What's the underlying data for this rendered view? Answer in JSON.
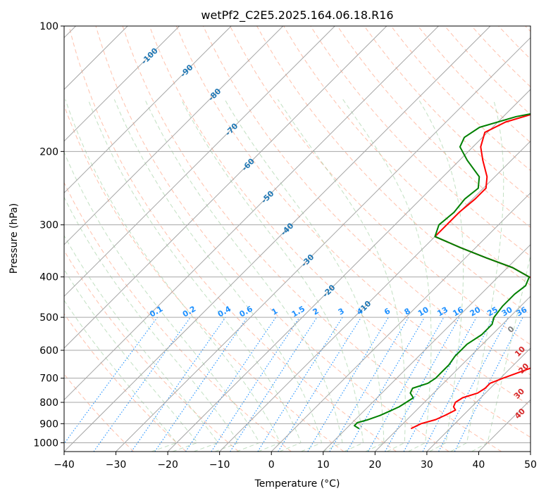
{
  "chart_data": {
    "type": "line",
    "subtype": "skew-t log-p diagram",
    "title": "wetPf2_C2E5.2025.164.06.18.R16",
    "xlabel": "Temperature (°C)",
    "ylabel": "Pressure (hPa)",
    "xlim": [
      -40,
      50
    ],
    "ylim": [
      1050,
      100
    ],
    "y_scale": "log",
    "x_ticks": [
      -40,
      -30,
      -20,
      -10,
      0,
      10,
      20,
      30,
      40,
      50
    ],
    "x_tick_labels": [
      "−40",
      "−30",
      "−20",
      "−10",
      "0",
      "10",
      "20",
      "30",
      "40",
      "50"
    ],
    "y_ticks": [
      100,
      200,
      300,
      400,
      500,
      600,
      700,
      800,
      900,
      1000
    ],
    "y_tick_labels": [
      "100",
      "200",
      "300",
      "400",
      "500",
      "600",
      "700",
      "800",
      "900",
      "1000"
    ],
    "grid": true,
    "legend": "none",
    "colors": {
      "temperature": "#ff0000",
      "dewpoint": "#008000",
      "isotherm": "#a6a6a6",
      "isobar": "#a6a6a6",
      "dry_adiabat": "#ff9f80",
      "moist_adiabat": "#99cc99",
      "mixing_ratio": "#1e90ff",
      "temperature_label": "#1f77b4",
      "potential_temperature_label": "#d62728",
      "zero_label": "#7f7f7f"
    },
    "series": [
      {
        "key": "temperature",
        "color": "#ff0000",
        "points": [
          {
            "p": 925,
            "t": 22.5
          },
          {
            "p": 900,
            "t": 23.5
          },
          {
            "p": 880,
            "t": 25.5
          },
          {
            "p": 860,
            "t": 26.5
          },
          {
            "p": 835,
            "t": 27.5
          },
          {
            "p": 820,
            "t": 26.5
          },
          {
            "p": 800,
            "t": 26.0
          },
          {
            "p": 780,
            "t": 26.5
          },
          {
            "p": 760,
            "t": 28.5
          },
          {
            "p": 740,
            "t": 29.0
          },
          {
            "p": 720,
            "t": 29.0
          },
          {
            "p": 700,
            "t": 30.5
          },
          {
            "p": 650,
            "t": 35.0
          },
          {
            "p": 600,
            "t": 37.5
          },
          {
            "p": 550,
            "t": 38.5
          },
          {
            "p": 520,
            "t": 37.5
          },
          {
            "p": 500,
            "t": 36.5
          },
          {
            "p": 470,
            "t": 33.5
          },
          {
            "p": 440,
            "t": 28.0
          },
          {
            "p": 420,
            "t": 22.5
          },
          {
            "p": 410,
            "t": 19.0
          },
          {
            "p": 400,
            "t": 16.0
          },
          {
            "p": 380,
            "t": 11.0
          },
          {
            "p": 360,
            "t": 4.0
          },
          {
            "p": 340,
            "t": -3.0
          },
          {
            "p": 320,
            "t": -10.0
          },
          {
            "p": 300,
            "t": -10.0
          },
          {
            "p": 280,
            "t": -10.0
          },
          {
            "p": 260,
            "t": -9.5
          },
          {
            "p": 245,
            "t": -9.5
          },
          {
            "p": 230,
            "t": -11.5
          },
          {
            "p": 210,
            "t": -15.5
          },
          {
            "p": 195,
            "t": -18.5
          },
          {
            "p": 180,
            "t": -20.5
          },
          {
            "p": 170,
            "t": -18.5
          },
          {
            "p": 160,
            "t": -13.5
          },
          {
            "p": 150,
            "t": -5.0
          },
          {
            "p": 140,
            "t": 2.5
          },
          {
            "p": 134,
            "t": 2.5
          },
          {
            "p": 130,
            "t": 4.0
          },
          {
            "p": 120,
            "t": 7.0
          },
          {
            "p": 110,
            "t": 11.5
          },
          {
            "p": 100,
            "t": 15.5
          }
        ]
      },
      {
        "key": "dewpoint",
        "color": "#008000",
        "points": [
          {
            "p": 925,
            "t": 12.5
          },
          {
            "p": 910,
            "t": 11.0
          },
          {
            "p": 895,
            "t": 11.0
          },
          {
            "p": 880,
            "t": 12.5
          },
          {
            "p": 860,
            "t": 14.0
          },
          {
            "p": 840,
            "t": 15.0
          },
          {
            "p": 820,
            "t": 16.0
          },
          {
            "p": 800,
            "t": 16.5
          },
          {
            "p": 780,
            "t": 17.0
          },
          {
            "p": 760,
            "t": 15.5
          },
          {
            "p": 740,
            "t": 15.0
          },
          {
            "p": 720,
            "t": 17.0
          },
          {
            "p": 700,
            "t": 17.5
          },
          {
            "p": 680,
            "t": 17.5
          },
          {
            "p": 650,
            "t": 17.5
          },
          {
            "p": 620,
            "t": 17.0
          },
          {
            "p": 580,
            "t": 17.0
          },
          {
            "p": 550,
            "t": 18.0
          },
          {
            "p": 520,
            "t": 18.0
          },
          {
            "p": 500,
            "t": 17.0
          },
          {
            "p": 470,
            "t": 16.5
          },
          {
            "p": 440,
            "t": 16.5
          },
          {
            "p": 420,
            "t": 17.0
          },
          {
            "p": 400,
            "t": 16.0
          },
          {
            "p": 380,
            "t": 11.0
          },
          {
            "p": 360,
            "t": 4.0
          },
          {
            "p": 340,
            "t": -3.0
          },
          {
            "p": 320,
            "t": -10.0
          },
          {
            "p": 300,
            "t": -11.5
          },
          {
            "p": 280,
            "t": -11.0
          },
          {
            "p": 260,
            "t": -11.5
          },
          {
            "p": 245,
            "t": -11.0
          },
          {
            "p": 230,
            "t": -13.0
          },
          {
            "p": 210,
            "t": -18.5
          },
          {
            "p": 195,
            "t": -22.5
          },
          {
            "p": 185,
            "t": -23.5
          },
          {
            "p": 175,
            "t": -22.5
          },
          {
            "p": 165,
            "t": -17.5
          },
          {
            "p": 155,
            "t": -8.5
          },
          {
            "p": 145,
            "t": 2.5
          },
          {
            "p": 135,
            "t": 3.0
          },
          {
            "p": 125,
            "t": -1.0
          },
          {
            "p": 115,
            "t": -1.0
          },
          {
            "p": 105,
            "t": 1.5
          },
          {
            "p": 100,
            "t": 4.0
          }
        ]
      }
    ],
    "temperature_labels": [
      "-100",
      "-90",
      "-80",
      "-70",
      "-60",
      "-50",
      "-40",
      "-30",
      "-20",
      "-10"
    ],
    "mixing_ratio_labels": [
      "0.1",
      "0.2",
      "0.4",
      "0.6",
      "1",
      "1.5",
      "2",
      "3",
      "4",
      "6",
      "8",
      "10",
      "13",
      "16",
      "20",
      "25",
      "30",
      "36"
    ],
    "potential_temperature_labels": [
      "0",
      "10",
      "20",
      "30",
      "40"
    ]
  }
}
